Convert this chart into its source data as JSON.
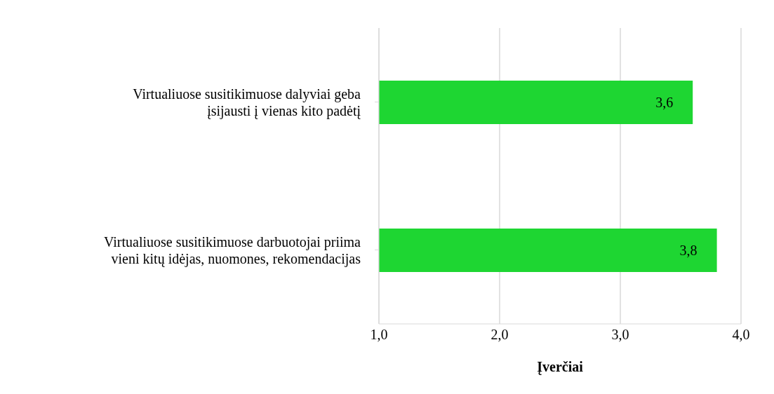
{
  "chart_data": {
    "type": "bar",
    "orientation": "horizontal",
    "xlabel": "Įverčiai",
    "categories": [
      "Virtualiuose susitikimuose dalyviai geba įsijausti į vienas kito padėtį",
      "Virtualiuose susitikimuose darbuotojai priima vieni kitų idėjas, nuomones, rekomendacijas"
    ],
    "values": [
      3.6,
      3.8
    ],
    "value_labels": [
      "3,6",
      "3,8"
    ],
    "color": "#1ed632",
    "xlim": [
      1,
      4
    ],
    "xticks": [
      {
        "value": 1,
        "label": "1,0"
      },
      {
        "value": 2,
        "label": "2,0"
      },
      {
        "value": 3,
        "label": "3,0"
      },
      {
        "value": 4,
        "label": "4,0"
      }
    ],
    "grid": "x",
    "legend": false
  }
}
